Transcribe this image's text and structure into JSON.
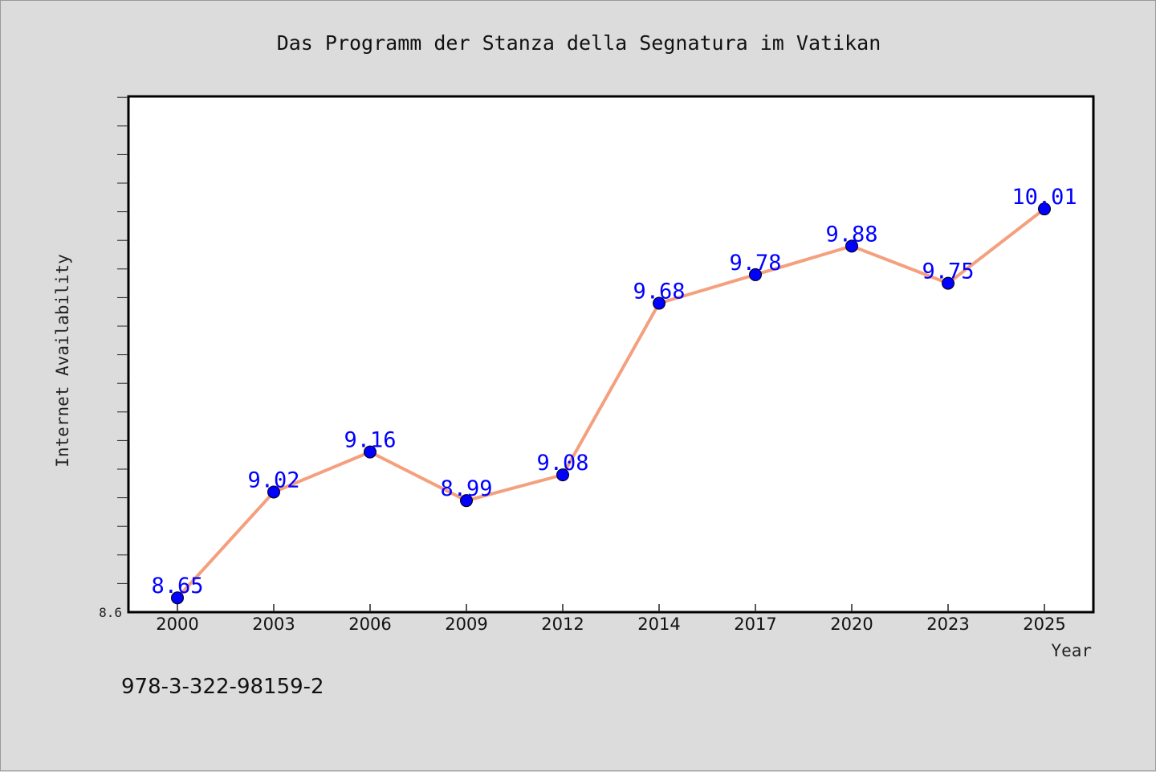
{
  "chart_data": {
    "type": "line",
    "title": "Das Programm der Stanza della Segnatura im Vatikan",
    "xlabel": "Year",
    "ylabel": "Internet Availability",
    "categories": [
      "2000",
      "2003",
      "2006",
      "2009",
      "2012",
      "2014",
      "2017",
      "2020",
      "2023",
      "2025"
    ],
    "series": [
      {
        "values": [
          8.65,
          9.02,
          9.16,
          8.99,
          9.08,
          9.68,
          9.78,
          9.88,
          9.75,
          10.01
        ]
      }
    ],
    "ylim": [
      8.6,
      10.4
    ],
    "y_tick_labels": [
      "8.6"
    ],
    "data_labels": [
      "8.65",
      "9.02",
      "9.16",
      "8.99",
      "9.08",
      "9.68",
      "9.78",
      "9.88",
      "9.75",
      "10.01"
    ],
    "grid": false,
    "colors": {
      "line": "#f4a07e",
      "marker": "#0000ff",
      "data_label": "#0000ff",
      "background": "#dcdcdc",
      "plot_background": "#ffffff"
    }
  },
  "footer": {
    "isbn": "978-3-322-98159-2"
  }
}
